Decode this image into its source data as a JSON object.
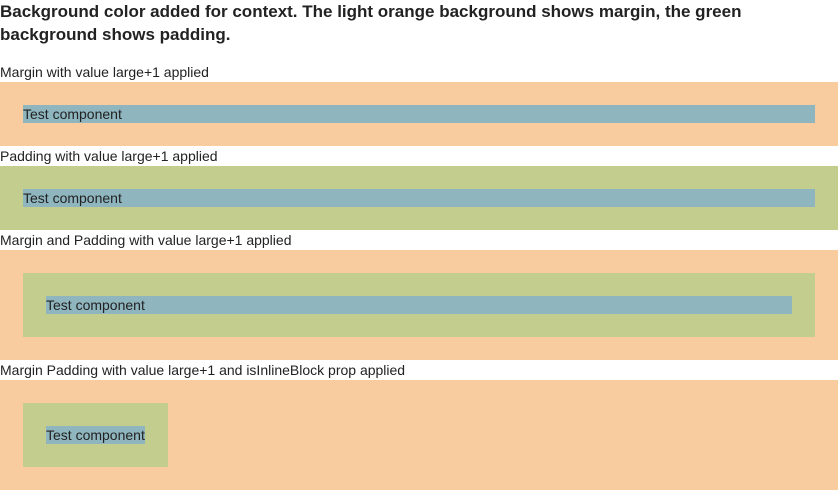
{
  "intro": "Background color added for context. The light orange background shows margin, the green background shows padding.",
  "examples": {
    "margin": {
      "label": "Margin with value large+1 applied",
      "component": "Test component"
    },
    "padding": {
      "label": "Padding with value large+1 applied",
      "component": "Test component"
    },
    "margin_padding": {
      "label": "Margin and Padding with value large+1 applied",
      "component": "Test component"
    },
    "inline_block": {
      "label": "Margin Padding with value large+1 and isInlineBlock prop applied",
      "component": "Test component"
    }
  },
  "colors": {
    "margin": "#f8cc9f",
    "padding": "#c3cd8e",
    "component": "#8fb6bf"
  }
}
